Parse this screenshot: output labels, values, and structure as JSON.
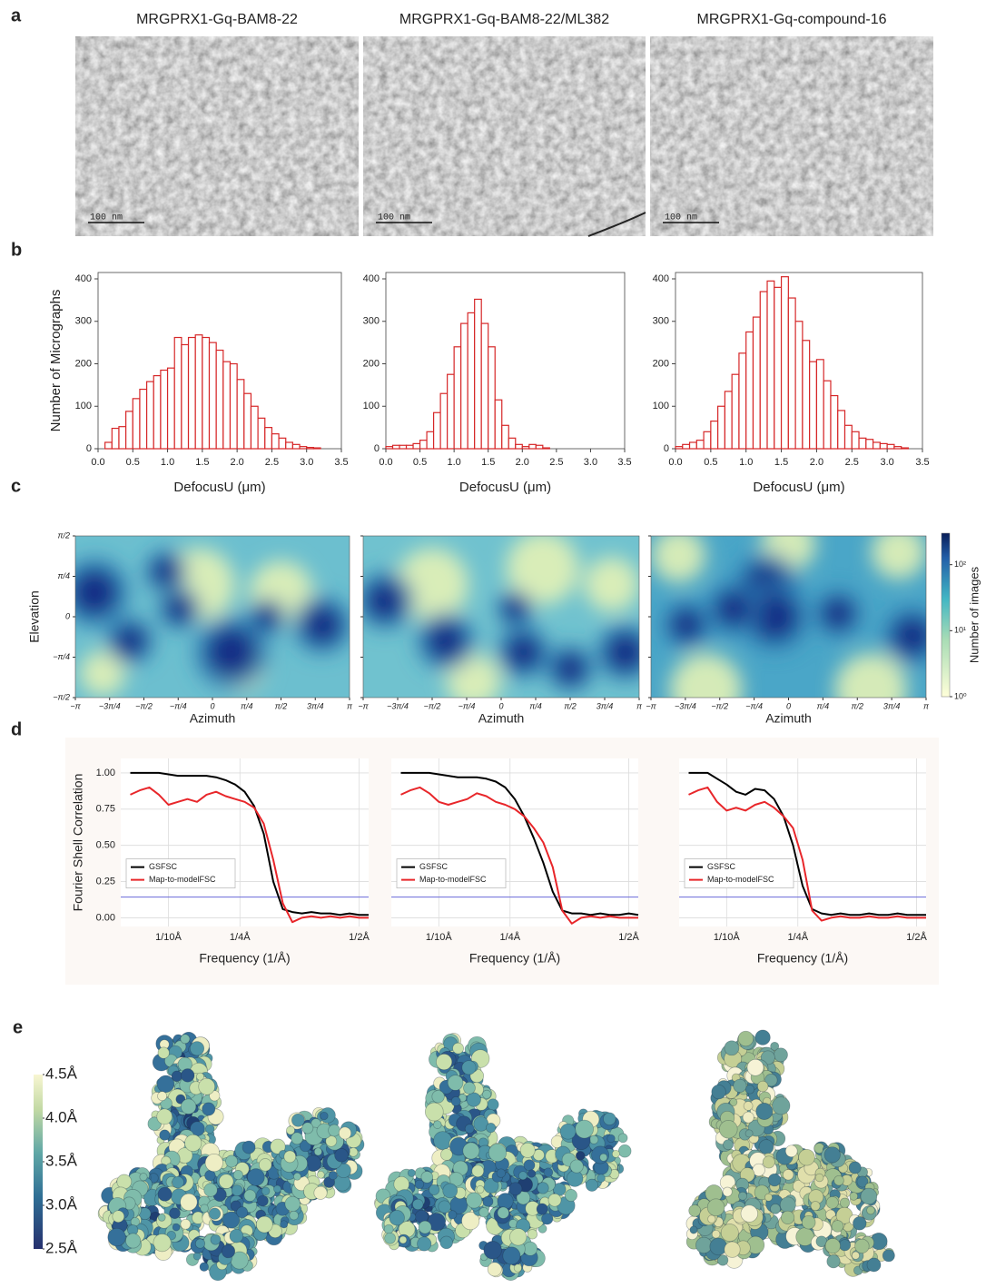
{
  "panel_labels": [
    "a",
    "b",
    "c",
    "d",
    "e"
  ],
  "micrographs": {
    "titles": [
      "MRGPRX1-Gq-BAM8-22",
      "MRGPRX1-Gq-BAM8-22/ML382",
      "MRGPRX1-Gq-compound-16"
    ],
    "scale_bars": [
      "100 nm",
      "100 nm",
      "100 nm"
    ]
  },
  "chart_data": [
    {
      "type": "histogram",
      "color": "#d62728",
      "xlim": [
        0,
        3.5
      ],
      "ylim": [
        0,
        415
      ],
      "bins": [
        0.1,
        0.2,
        0.3,
        0.4,
        0.5,
        0.6,
        0.7,
        0.8,
        0.9,
        1.0,
        1.1,
        1.2,
        1.3,
        1.4,
        1.5,
        1.6,
        1.7,
        1.8,
        1.9,
        2.0,
        2.1,
        2.2,
        2.3,
        2.4,
        2.5,
        2.6,
        2.7,
        2.8,
        2.9,
        3.0,
        3.1,
        3.2
      ],
      "values": [
        15,
        48,
        52,
        88,
        118,
        140,
        158,
        172,
        185,
        190,
        262,
        245,
        262,
        268,
        262,
        250,
        232,
        205,
        200,
        163,
        130,
        100,
        72,
        50,
        35,
        25,
        15,
        10,
        5,
        3,
        2
      ],
      "xticks": [
        {
          "value": 0,
          "label": "0.0"
        },
        0.5,
        {
          "value": 1,
          "label": "1.0"
        },
        1.5,
        {
          "value": 2,
          "label": "2.0"
        },
        2.5,
        {
          "value": 3,
          "label": "3.0"
        },
        3.5
      ],
      "yticks": [
        0,
        100,
        200,
        300,
        400
      ],
      "xlabel": "DefocusU (μm)",
      "ylabel": "Number of Micrographs"
    },
    {
      "type": "histogram",
      "color": "#d62728",
      "xlim": [
        0,
        3.5
      ],
      "ylim": [
        0,
        415
      ],
      "bins": [
        0.0,
        0.1,
        0.2,
        0.3,
        0.4,
        0.5,
        0.6,
        0.7,
        0.8,
        0.9,
        1.0,
        1.1,
        1.2,
        1.3,
        1.4,
        1.5,
        1.6,
        1.7,
        1.8,
        1.9,
        2.0,
        2.1,
        2.2,
        2.3,
        2.4
      ],
      "values": [
        5,
        8,
        8,
        8,
        12,
        20,
        40,
        85,
        130,
        175,
        240,
        295,
        320,
        352,
        295,
        240,
        115,
        55,
        25,
        10,
        5,
        10,
        8,
        2
      ],
      "xticks": [
        {
          "value": 0,
          "label": "0.0"
        },
        0.5,
        {
          "value": 1,
          "label": "1.0"
        },
        1.5,
        {
          "value": 2,
          "label": "2.0"
        },
        2.5,
        {
          "value": 3,
          "label": "3.0"
        },
        3.5
      ],
      "yticks": [
        0,
        100,
        200,
        300,
        400
      ],
      "xlabel": "DefocusU (μm)"
    },
    {
      "type": "histogram",
      "color": "#d62728",
      "xlim": [
        0,
        3.5
      ],
      "ylim": [
        0,
        415
      ],
      "bins": [
        0.0,
        0.1,
        0.2,
        0.3,
        0.4,
        0.5,
        0.6,
        0.7,
        0.8,
        0.9,
        1.0,
        1.1,
        1.2,
        1.3,
        1.4,
        1.5,
        1.6,
        1.7,
        1.8,
        1.9,
        2.0,
        2.1,
        2.2,
        2.3,
        2.4,
        2.5,
        2.6,
        2.7,
        2.8,
        2.9,
        3.0,
        3.1,
        3.2,
        3.3
      ],
      "values": [
        5,
        10,
        15,
        20,
        40,
        65,
        100,
        135,
        175,
        225,
        275,
        310,
        370,
        395,
        380,
        405,
        355,
        300,
        255,
        205,
        210,
        160,
        125,
        90,
        55,
        40,
        25,
        22,
        15,
        12,
        10,
        5,
        2
      ],
      "xticks": [
        {
          "value": 0,
          "label": "0.0"
        },
        0.5,
        {
          "value": 1,
          "label": "1.0"
        },
        1.5,
        {
          "value": 2,
          "label": "2.0"
        },
        2.5,
        {
          "value": 3,
          "label": "3.0"
        },
        3.5
      ],
      "yticks": [
        0,
        100,
        200,
        300,
        400
      ],
      "xlabel": "DefocusU (μm)"
    },
    {
      "type": "hexbin",
      "xlim": [
        -3.1416,
        3.1416
      ],
      "ylim": [
        -1.5708,
        1.5708
      ],
      "xticks": [
        {
          "value": -3.1416,
          "label": "−π"
        },
        {
          "value": -2.3562,
          "label": "−3π/4"
        },
        {
          "value": -1.5708,
          "label": "−π/2"
        },
        {
          "value": -0.7854,
          "label": "−π/4"
        },
        0,
        {
          "value": 0.7854,
          "label": "π/4"
        },
        {
          "value": 1.5708,
          "label": "π/2"
        },
        {
          "value": 2.3562,
          "label": "3π/4"
        },
        {
          "value": 3.1416,
          "label": "π"
        }
      ],
      "yticks": [
        {
          "value": -1.5708,
          "label": "−π/2"
        },
        {
          "value": -0.7854,
          "label": "−π/4"
        },
        0,
        {
          "value": 0.7854,
          "label": "π/4"
        },
        {
          "value": 1.5708,
          "label": "π/2"
        }
      ],
      "xlabel": "Azimuth",
      "ylabel": "Elevation"
    },
    {
      "type": "hexbin",
      "xlim": [
        -3.1416,
        3.1416
      ],
      "ylim": [
        -1.5708,
        1.5708
      ],
      "xticks": [
        {
          "value": -3.1416,
          "label": "−π"
        },
        {
          "value": -2.3562,
          "label": "−3π/4"
        },
        {
          "value": -1.5708,
          "label": "−π/2"
        },
        {
          "value": -0.7854,
          "label": "−π/4"
        },
        0,
        {
          "value": 0.7854,
          "label": "π/4"
        },
        {
          "value": 1.5708,
          "label": "π/2"
        },
        {
          "value": 2.3562,
          "label": "3π/4"
        },
        {
          "value": 3.1416,
          "label": "π"
        }
      ],
      "yticks": [
        -1.5708,
        -0.7854,
        0,
        0.7854,
        1.5708
      ],
      "xlabel": "Azimuth"
    },
    {
      "type": "hexbin",
      "xlim": [
        -3.1416,
        3.1416
      ],
      "ylim": [
        -1.5708,
        1.5708
      ],
      "xticks": [
        {
          "value": -3.1416,
          "label": "−π"
        },
        {
          "value": -2.3562,
          "label": "−3π/4"
        },
        {
          "value": -1.5708,
          "label": "−π/2"
        },
        {
          "value": -0.7854,
          "label": "−π/4"
        },
        0,
        {
          "value": 0.7854,
          "label": "π/4"
        },
        {
          "value": 1.5708,
          "label": "π/2"
        },
        {
          "value": 2.3562,
          "label": "3π/4"
        },
        {
          "value": 3.1416,
          "label": "π"
        }
      ],
      "yticks": [
        -1.5708,
        -0.7854,
        0,
        0.7854,
        1.5708
      ],
      "xlabel": "Azimuth",
      "colorbar": {
        "label": "Number of images",
        "log": true,
        "lim": [
          1,
          300
        ],
        "ticks": [
          {
            "value": 1,
            "label": "10⁰"
          },
          {
            "value": 10,
            "label": "10¹"
          },
          {
            "value": 100,
            "label": "10²"
          }
        ]
      }
    },
    {
      "type": "line",
      "grid": true,
      "legend": "lower-left",
      "xlim": [
        0,
        0.52
      ],
      "ylim": [
        -0.06,
        1.1
      ],
      "x": [
        0.02,
        0.04,
        0.06,
        0.08,
        0.1,
        0.12,
        0.14,
        0.16,
        0.18,
        0.2,
        0.22,
        0.24,
        0.26,
        0.28,
        0.3,
        0.32,
        0.34,
        0.36,
        0.38,
        0.4,
        0.42,
        0.44,
        0.46,
        0.48,
        0.5,
        0.52
      ],
      "series": [
        {
          "name": "GSFSC",
          "color": "#000000",
          "values": [
            1.0,
            1.0,
            1.0,
            1.0,
            0.99,
            0.98,
            0.98,
            0.98,
            0.98,
            0.97,
            0.95,
            0.92,
            0.87,
            0.77,
            0.58,
            0.25,
            0.06,
            0.04,
            0.03,
            0.04,
            0.03,
            0.03,
            0.02,
            0.03,
            0.02,
            0.02
          ]
        },
        {
          "name": "Map-to-modelFSC",
          "color": "#e8262a",
          "values": [
            0.85,
            0.88,
            0.9,
            0.85,
            0.78,
            0.8,
            0.82,
            0.8,
            0.85,
            0.87,
            0.84,
            0.82,
            0.8,
            0.76,
            0.65,
            0.4,
            0.1,
            -0.03,
            0.0,
            0.01,
            0.0,
            0.01,
            0.0,
            0.01,
            0.0,
            0.0
          ]
        }
      ],
      "threshold": 0.143,
      "threshold_color": "#6a6ad8",
      "xticks": [
        {
          "value": 0.1,
          "label": "1/10Å"
        },
        {
          "value": 0.25,
          "label": "1/4Å"
        },
        {
          "value": 0.5,
          "label": "1/2Å"
        }
      ],
      "yticks": [
        {
          "value": 0,
          "label": "0.00"
        },
        0.25,
        {
          "value": 0.5,
          "label": "0.50"
        },
        0.75,
        {
          "value": 1,
          "label": "1.00"
        }
      ],
      "xlabel": "Frequency (1/Å)",
      "ylabel": "Fourier Shell Correlation"
    },
    {
      "type": "line",
      "grid": true,
      "legend": "lower-left",
      "xlim": [
        0,
        0.52
      ],
      "ylim": [
        -0.06,
        1.1
      ],
      "x": [
        0.02,
        0.04,
        0.06,
        0.08,
        0.1,
        0.12,
        0.14,
        0.16,
        0.18,
        0.2,
        0.22,
        0.24,
        0.26,
        0.28,
        0.3,
        0.32,
        0.34,
        0.36,
        0.38,
        0.4,
        0.42,
        0.44,
        0.46,
        0.48,
        0.5,
        0.52
      ],
      "series": [
        {
          "name": "GSFSC",
          "color": "#000000",
          "values": [
            1.0,
            1.0,
            1.0,
            1.0,
            0.99,
            0.98,
            0.97,
            0.97,
            0.97,
            0.96,
            0.94,
            0.9,
            0.82,
            0.7,
            0.55,
            0.38,
            0.18,
            0.05,
            0.03,
            0.03,
            0.02,
            0.03,
            0.02,
            0.02,
            0.03,
            0.02
          ]
        },
        {
          "name": "Map-to-modelFSC",
          "color": "#e8262a",
          "values": [
            0.85,
            0.88,
            0.9,
            0.86,
            0.8,
            0.78,
            0.8,
            0.82,
            0.86,
            0.84,
            0.8,
            0.78,
            0.75,
            0.7,
            0.62,
            0.52,
            0.35,
            0.05,
            -0.04,
            0.0,
            0.01,
            0.0,
            0.01,
            0.0,
            0.0,
            0.0
          ]
        }
      ],
      "threshold": 0.143,
      "threshold_color": "#6a6ad8",
      "xticks": [
        {
          "value": 0.1,
          "label": "1/10Å"
        },
        {
          "value": 0.25,
          "label": "1/4Å"
        },
        {
          "value": 0.5,
          "label": "1/2Å"
        }
      ],
      "yticks": [
        0,
        0.25,
        0.5,
        0.75,
        1
      ],
      "xlabel": "Frequency (1/Å)"
    },
    {
      "type": "line",
      "grid": true,
      "legend": "lower-left",
      "xlim": [
        0,
        0.52
      ],
      "ylim": [
        -0.06,
        1.1
      ],
      "x": [
        0.02,
        0.04,
        0.06,
        0.08,
        0.1,
        0.12,
        0.14,
        0.16,
        0.18,
        0.2,
        0.22,
        0.24,
        0.26,
        0.28,
        0.3,
        0.32,
        0.34,
        0.36,
        0.38,
        0.4,
        0.42,
        0.44,
        0.46,
        0.48,
        0.5,
        0.52
      ],
      "series": [
        {
          "name": "GSFSC",
          "color": "#000000",
          "values": [
            1.0,
            1.0,
            1.0,
            0.96,
            0.92,
            0.87,
            0.85,
            0.89,
            0.88,
            0.82,
            0.7,
            0.5,
            0.22,
            0.06,
            0.03,
            0.02,
            0.03,
            0.02,
            0.02,
            0.03,
            0.02,
            0.02,
            0.03,
            0.02,
            0.02,
            0.02
          ]
        },
        {
          "name": "Map-to-modelFSC",
          "color": "#e8262a",
          "values": [
            0.85,
            0.88,
            0.9,
            0.8,
            0.74,
            0.76,
            0.74,
            0.78,
            0.8,
            0.76,
            0.7,
            0.62,
            0.4,
            0.05,
            -0.02,
            0.0,
            0.01,
            0.0,
            0.0,
            0.01,
            0.0,
            0.0,
            0.01,
            0.0,
            0.0,
            0.0
          ]
        }
      ],
      "threshold": 0.143,
      "threshold_color": "#6a6ad8",
      "xticks": [
        {
          "value": 0.1,
          "label": "1/10Å"
        },
        {
          "value": 0.25,
          "label": "1/4Å"
        },
        {
          "value": 0.5,
          "label": "1/2Å"
        }
      ],
      "yticks": [
        0,
        0.25,
        0.5,
        0.75,
        1
      ],
      "xlabel": "Frequency (1/Å)"
    }
  ],
  "structure_maps": {
    "colorbar": {
      "lim": [
        2.5,
        4.5
      ],
      "ticks": [
        {
          "value": 4.5,
          "label": "4.5Å"
        },
        {
          "value": 4,
          "label": "4.0Å"
        },
        {
          "value": 3.5,
          "label": "3.5Å"
        },
        {
          "value": 3,
          "label": "3.0Å"
        },
        {
          "value": 2.5,
          "label": "2.5Å"
        }
      ]
    }
  }
}
